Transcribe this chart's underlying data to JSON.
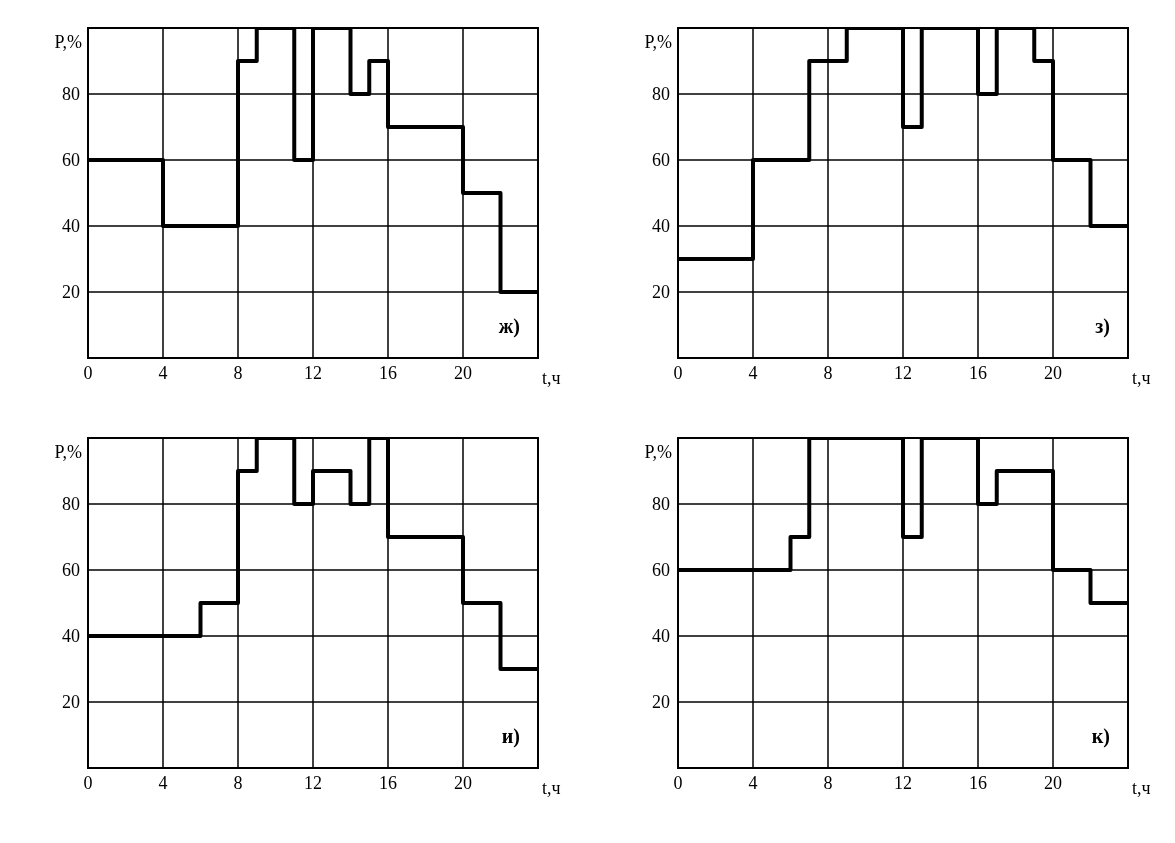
{
  "chart_data": [
    {
      "type": "step",
      "xlabel": "t,ч",
      "ylabel": "P,%",
      "annotations": [
        "ж)"
      ],
      "x": [
        0,
        4,
        8,
        9,
        11,
        12,
        14,
        15,
        16,
        20,
        22,
        24
      ],
      "values": [
        60,
        40,
        90,
        100,
        60,
        100,
        80,
        90,
        70,
        50,
        20,
        20
      ],
      "color": "#000000",
      "xlim": [
        0,
        24
      ],
      "ylim": [
        0,
        100
      ],
      "xticks": [
        0,
        4,
        8,
        12,
        16,
        20
      ],
      "yticks": [
        20,
        40,
        60,
        80
      ],
      "grid": true,
      "legend": false,
      "marker": "none",
      "line_style": "solid"
    },
    {
      "type": "step",
      "xlabel": "t,ч",
      "ylabel": "P,%",
      "annotations": [
        "з)"
      ],
      "x": [
        0,
        4,
        7,
        9,
        12,
        13,
        16,
        17,
        19,
        20,
        22,
        24
      ],
      "values": [
        30,
        60,
        90,
        100,
        70,
        100,
        80,
        100,
        90,
        60,
        40,
        40
      ],
      "color": "#000000",
      "xlim": [
        0,
        24
      ],
      "ylim": [
        0,
        100
      ],
      "xticks": [
        0,
        4,
        8,
        12,
        16,
        20
      ],
      "yticks": [
        20,
        40,
        60,
        80
      ],
      "grid": true,
      "legend": false,
      "marker": "none",
      "line_style": "solid"
    },
    {
      "type": "step",
      "xlabel": "t,ч",
      "ylabel": "P,%",
      "annotations": [
        "и)"
      ],
      "x": [
        0,
        6,
        8,
        9,
        11,
        12,
        14,
        15,
        16,
        20,
        22,
        24
      ],
      "values": [
        40,
        50,
        90,
        100,
        80,
        90,
        80,
        100,
        70,
        50,
        30,
        30
      ],
      "color": "#000000",
      "xlim": [
        0,
        24
      ],
      "ylim": [
        0,
        100
      ],
      "xticks": [
        0,
        4,
        8,
        12,
        16,
        20
      ],
      "yticks": [
        20,
        40,
        60,
        80
      ],
      "grid": true,
      "legend": false,
      "marker": "none",
      "line_style": "solid"
    },
    {
      "type": "step",
      "xlabel": "t,ч",
      "ylabel": "P,%",
      "annotations": [
        "к)"
      ],
      "x": [
        0,
        6,
        7,
        12,
        13,
        16,
        17,
        20,
        22,
        24
      ],
      "values": [
        60,
        70,
        100,
        70,
        100,
        80,
        90,
        60,
        50,
        50
      ],
      "color": "#000000",
      "xlim": [
        0,
        24
      ],
      "ylim": [
        0,
        100
      ],
      "xticks": [
        0,
        4,
        8,
        12,
        16,
        20
      ],
      "yticks": [
        20,
        40,
        60,
        80
      ],
      "grid": true,
      "legend": false,
      "marker": "none",
      "line_style": "solid"
    }
  ]
}
